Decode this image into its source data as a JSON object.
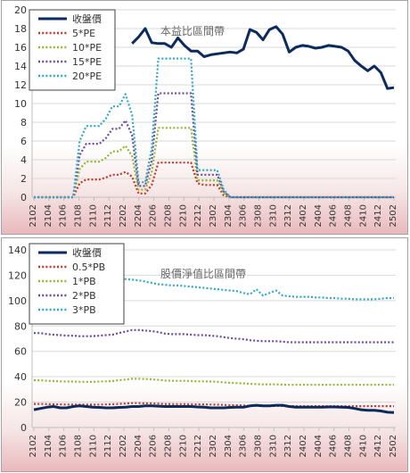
{
  "chart_data": [
    {
      "type": "line",
      "title": "本益比區間帶",
      "ylim": [
        0,
        20
      ],
      "yticks": [
        0,
        2,
        4,
        6,
        8,
        10,
        12,
        14,
        16,
        18,
        20
      ],
      "xtick_labels": [
        "2102",
        "2104",
        "2106",
        "2108",
        "2110",
        "2112",
        "2202",
        "2204",
        "2206",
        "2208",
        "2210",
        "2212",
        "2302",
        "2304",
        "2306",
        "2308",
        "2310",
        "2312",
        "2402",
        "2404",
        "2406",
        "2408",
        "2410",
        "2412",
        "2502"
      ],
      "grid": true,
      "legend_position": "top-left",
      "series": [
        {
          "name": "收盤價",
          "color": "#0b2a5e",
          "style": "solid",
          "width": 3,
          "values": [
            null,
            null,
            null,
            null,
            null,
            null,
            null,
            null,
            null,
            null,
            null,
            null,
            null,
            null,
            null,
            16.4,
            17.1,
            18.0,
            16.5,
            16.4,
            16.4,
            16.0,
            17.0,
            16.2,
            15.6,
            15.6,
            15.0,
            15.2,
            15.3,
            15.4,
            15.5,
            15.4,
            15.8,
            17.9,
            17.6,
            16.8,
            17.9,
            18.2,
            17.4,
            15.5,
            16.0,
            16.2,
            16.1,
            15.9,
            16.0,
            16.2,
            16.1,
            16.0,
            15.6,
            14.6,
            14.0,
            13.5,
            14.0,
            13.3,
            11.6,
            11.7
          ]
        },
        {
          "name": "5*PE",
          "color": "#c0392b",
          "style": "dotted",
          "width": 2.2,
          "values": [
            0,
            0,
            0,
            0,
            0,
            0,
            0,
            1.5,
            1.9,
            1.9,
            1.9,
            2.1,
            2.4,
            2.4,
            2.7,
            2.2,
            0.4,
            0.4,
            1.3,
            3.7,
            3.7,
            3.7,
            3.7,
            3.7,
            3.7,
            1.5,
            1.3,
            1.3,
            1.3,
            0.2,
            0,
            0,
            0,
            0,
            0,
            0,
            0,
            0,
            0,
            0,
            0,
            0,
            0,
            0,
            0,
            0,
            0,
            0,
            0,
            0,
            0,
            0,
            0,
            0,
            0,
            0
          ]
        },
        {
          "name": "10*PE",
          "color": "#8fb834",
          "style": "dotted",
          "width": 2.2,
          "values": [
            0,
            0,
            0,
            0,
            0,
            0,
            0,
            3.0,
            3.8,
            3.8,
            3.8,
            4.2,
            4.9,
            4.9,
            5.5,
            4.4,
            0.8,
            0.8,
            2.6,
            7.4,
            7.4,
            7.4,
            7.4,
            7.4,
            7.4,
            1.8,
            1.8,
            1.8,
            1.8,
            0.4,
            0,
            0,
            0,
            0,
            0,
            0,
            0,
            0,
            0,
            0,
            0,
            0,
            0,
            0,
            0,
            0,
            0,
            0,
            0,
            0,
            0,
            0,
            0,
            0,
            0,
            0
          ]
        },
        {
          "name": "15*PE",
          "color": "#6d4a9c",
          "style": "dotted",
          "width": 2.2,
          "values": [
            0,
            0,
            0,
            0,
            0,
            0,
            0,
            4.5,
            5.7,
            5.7,
            5.7,
            6.3,
            7.3,
            7.3,
            8.2,
            6.6,
            1.2,
            1.2,
            3.9,
            11.1,
            11.1,
            11.1,
            11.1,
            11.1,
            11.1,
            2.4,
            2.4,
            2.4,
            2.4,
            0.6,
            0,
            0,
            0,
            0,
            0,
            0,
            0,
            0,
            0,
            0,
            0,
            0,
            0,
            0,
            0,
            0,
            0,
            0,
            0,
            0,
            0,
            0,
            0,
            0,
            0,
            0
          ]
        },
        {
          "name": "20*PE",
          "color": "#31a8c6",
          "style": "dotted",
          "width": 2.2,
          "values": [
            0,
            0,
            0,
            0,
            0,
            0,
            0,
            6.0,
            7.6,
            7.6,
            7.6,
            8.4,
            9.7,
            9.7,
            11.0,
            8.8,
            1.6,
            1.6,
            5.2,
            14.8,
            14.8,
            14.8,
            14.8,
            14.8,
            14.8,
            2.9,
            2.9,
            2.9,
            2.9,
            0.8,
            0,
            0,
            0,
            0,
            0,
            0,
            0,
            0,
            0,
            0,
            0,
            0,
            0,
            0,
            0,
            0,
            0,
            0,
            0,
            0,
            0,
            0,
            0,
            0,
            0,
            0
          ]
        }
      ]
    },
    {
      "type": "line",
      "title": "股價淨值比區間帶",
      "ylim": [
        0,
        140
      ],
      "yticks": [
        0,
        20,
        40,
        60,
        80,
        100,
        120,
        140
      ],
      "xtick_labels": [
        "2102",
        "2104",
        "2106",
        "2108",
        "2110",
        "2112",
        "2202",
        "2204",
        "2206",
        "2208",
        "2210",
        "2212",
        "2302",
        "2304",
        "2306",
        "2308",
        "2310",
        "2312",
        "2402",
        "2404",
        "2406",
        "2408",
        "2410",
        "2412",
        "2502"
      ],
      "grid": true,
      "legend_position": "top-left",
      "series": [
        {
          "name": "收盤價",
          "color": "#0b2a5e",
          "style": "solid",
          "width": 3,
          "values": [
            14.0,
            15.0,
            16.0,
            16.5,
            15.5,
            15.5,
            16.5,
            17.0,
            16.5,
            16.0,
            15.8,
            15.5,
            15.5,
            15.8,
            16.0,
            16.5,
            16.5,
            17.0,
            17.0,
            16.8,
            16.5,
            16.5,
            16.5,
            16.5,
            16.5,
            16.2,
            16.0,
            15.5,
            15.5,
            15.5,
            15.8,
            16.0,
            16.0,
            17.0,
            17.5,
            17.0,
            17.0,
            17.5,
            17.5,
            16.5,
            16.0,
            16.0,
            16.0,
            16.0,
            16.0,
            16.2,
            16.2,
            16.0,
            15.8,
            15.0,
            14.0,
            13.5,
            13.5,
            13.0,
            12.0,
            11.8
          ]
        },
        {
          "name": "0.5*PB",
          "color": "#c0392b",
          "style": "dotted",
          "width": 2.2,
          "values": [
            18.6,
            18.6,
            18.4,
            18.3,
            18.2,
            18.1,
            18.1,
            18.0,
            18.0,
            18.0,
            18.1,
            18.2,
            18.3,
            18.6,
            18.9,
            19.2,
            19.2,
            19.1,
            19.0,
            18.8,
            18.5,
            18.4,
            18.4,
            18.4,
            18.3,
            18.2,
            18.2,
            18.1,
            18.0,
            17.8,
            17.6,
            17.5,
            17.4,
            17.2,
            17.1,
            17.0,
            17.0,
            17.0,
            16.9,
            16.8,
            16.8,
            16.8,
            16.8,
            16.8,
            16.8,
            16.8,
            16.8,
            16.8,
            16.8,
            16.8,
            16.8,
            16.8,
            16.8,
            16.8,
            16.8,
            16.8
          ]
        },
        {
          "name": "1*PB",
          "color": "#8fb834",
          "style": "dotted",
          "width": 2.2,
          "values": [
            37.2,
            37.2,
            36.8,
            36.6,
            36.4,
            36.2,
            36.2,
            36.0,
            36.0,
            36.0,
            36.2,
            36.4,
            36.6,
            37.2,
            37.8,
            38.4,
            38.4,
            38.2,
            38.0,
            37.6,
            37.0,
            36.8,
            36.8,
            36.8,
            36.6,
            36.4,
            36.4,
            36.2,
            36.0,
            35.6,
            35.2,
            35.0,
            34.8,
            34.4,
            34.2,
            34.0,
            34.0,
            34.0,
            33.8,
            33.6,
            33.6,
            33.6,
            33.6,
            33.6,
            33.6,
            33.6,
            33.6,
            33.6,
            33.6,
            33.6,
            33.6,
            33.6,
            33.6,
            33.6,
            33.6,
            33.6
          ]
        },
        {
          "name": "2*PB",
          "color": "#6d4a9c",
          "style": "dotted",
          "width": 2.2,
          "values": [
            74.4,
            74.4,
            73.6,
            73.2,
            72.8,
            72.4,
            72.4,
            72.0,
            72.0,
            72.0,
            72.4,
            72.8,
            73.2,
            74.4,
            75.6,
            76.8,
            76.8,
            76.4,
            76.0,
            75.2,
            74.0,
            73.6,
            73.6,
            73.6,
            73.2,
            72.8,
            72.8,
            72.4,
            72.0,
            71.2,
            70.4,
            70.0,
            69.6,
            68.8,
            68.4,
            68.0,
            68.0,
            68.0,
            67.6,
            67.2,
            67.2,
            67.2,
            67.2,
            67.2,
            67.2,
            67.2,
            67.2,
            67.2,
            67.2,
            67.2,
            67.2,
            67.2,
            67.2,
            67.2,
            67.2,
            67.2
          ]
        },
        {
          "name": "3*PB",
          "color": "#31a8c6",
          "style": "dotted",
          "width": 2.2,
          "values": [
            111.6,
            111.6,
            110.4,
            109.8,
            109.2,
            108.6,
            108.6,
            108.0,
            112.0,
            114.0,
            115.0,
            115.5,
            116.0,
            117.0,
            117.0,
            116.5,
            116.0,
            115.0,
            114.0,
            113.0,
            112.5,
            112.0,
            112.0,
            111.5,
            111.0,
            110.5,
            110.0,
            109.5,
            109.0,
            108.5,
            108.0,
            107.5,
            106.0,
            105.0,
            109.0,
            104.0,
            106.0,
            108.0,
            104.0,
            103.5,
            103.0,
            103.0,
            103.0,
            102.5,
            102.5,
            102.0,
            102.0,
            101.5,
            101.5,
            101.0,
            101.0,
            101.0,
            101.0,
            101.5,
            102.0,
            102.0
          ]
        }
      ]
    }
  ]
}
